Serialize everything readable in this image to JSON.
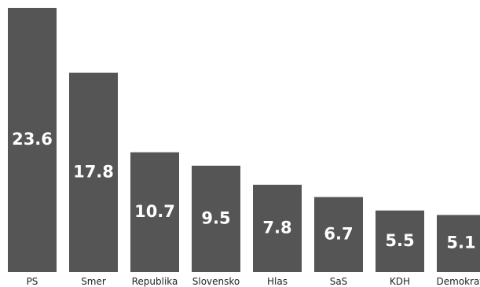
{
  "chart_data": {
    "type": "bar",
    "categories": [
      "PS",
      "Smer",
      "Republika",
      "Slovensko",
      "Hlas",
      "SaS",
      "KDH",
      "Demokrati"
    ],
    "values": [
      23.6,
      17.8,
      10.7,
      9.5,
      7.8,
      6.7,
      5.5,
      5.1
    ],
    "value_labels": [
      "23.6",
      "17.8",
      "10.7",
      "9.5",
      "7.8",
      "6.7",
      "5.5",
      "5.1"
    ],
    "title": "",
    "xlabel": "",
    "ylabel": "",
    "ylim": [
      0,
      23.6
    ],
    "grid": false,
    "legend": "none",
    "bar_color": "#555555",
    "label_color": "#ffffff"
  }
}
